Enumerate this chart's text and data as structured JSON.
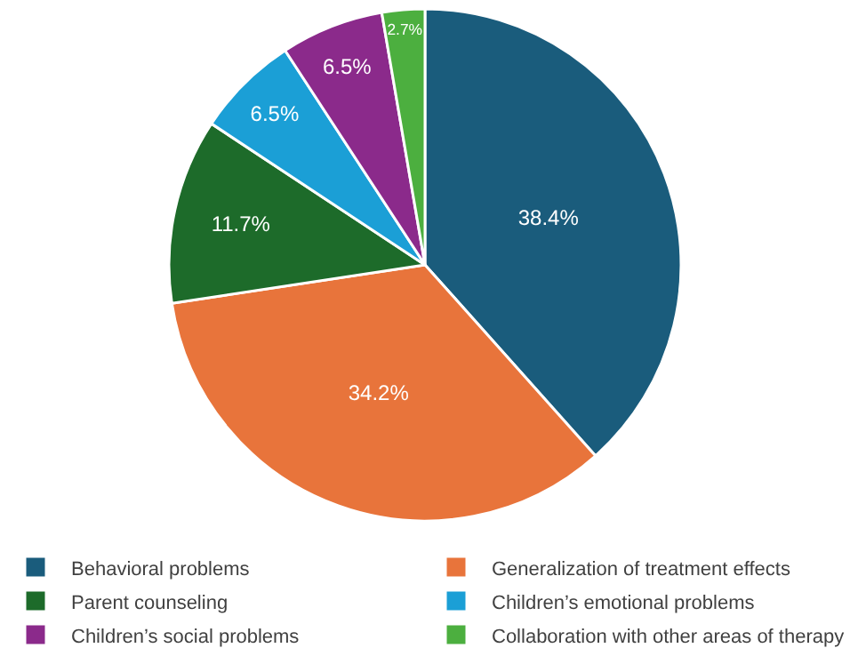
{
  "chart_data": {
    "type": "pie",
    "categories": [
      "Behavioral problems",
      "Generalization of treatment effects",
      "Parent counseling",
      "Children’s emotional problems",
      "Children’s social problems",
      "Collaboration with other areas of therapy"
    ],
    "values": [
      38.4,
      34.2,
      11.7,
      6.5,
      6.5,
      2.7
    ],
    "value_labels": [
      "38.4%",
      "34.2%",
      "11.7%",
      "6.5%",
      "6.5%",
      "2.7%"
    ],
    "colors": [
      "#1a5c7c",
      "#e8743b",
      "#1d6b2a",
      "#1b9fd6",
      "#8b2a8b",
      "#4caf3f"
    ],
    "legend": "bottom"
  }
}
